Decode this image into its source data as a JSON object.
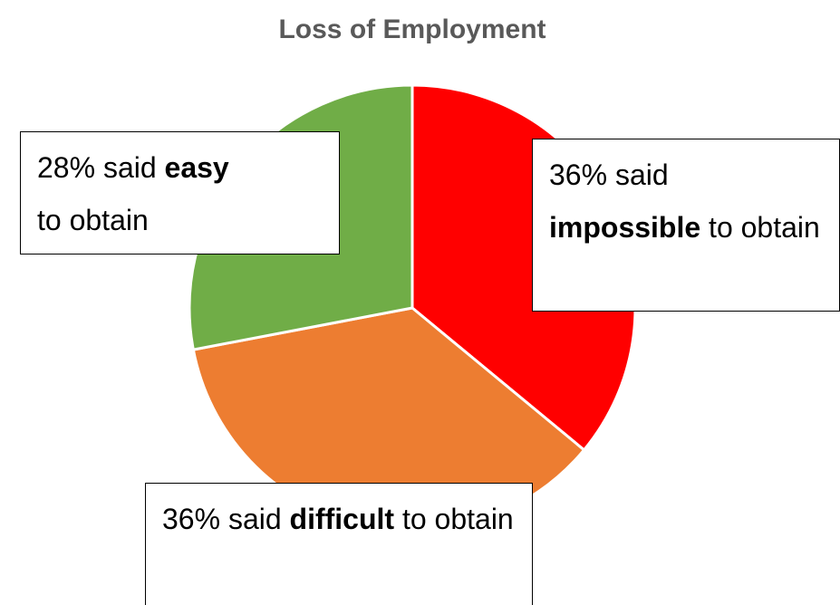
{
  "chart_data": {
    "type": "pie",
    "title": "Loss of Employment",
    "categories": [
      "impossible",
      "difficult",
      "easy"
    ],
    "values": [
      36,
      36,
      28
    ],
    "value_labels": [
      "36%",
      "36%",
      "28%"
    ],
    "label_before": [
      "said",
      "said",
      "said"
    ],
    "label_after": [
      "to obtain",
      "to obtain",
      "to obtain"
    ],
    "colors": [
      "#ff0000",
      "#ed7d31",
      "#70ad47"
    ]
  }
}
